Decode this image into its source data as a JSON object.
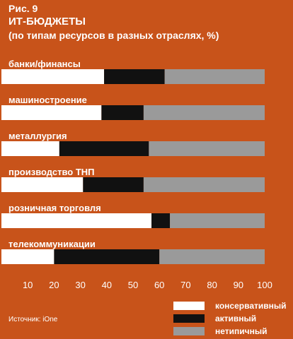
{
  "figure": {
    "label": "Рис. 9",
    "title": "ИТ-БЮДЖЕТЫ",
    "subtitle": "(по типам ресурсов в разных отраслях, %)",
    "source": "Источник: iOne"
  },
  "colors": {
    "background": "#c8531a",
    "conservative": "#ffffff",
    "active": "#111111",
    "atypical": "#9a9a9a"
  },
  "chart_data": {
    "type": "bar",
    "orientation": "horizontal",
    "stacked": true,
    "categories": [
      "банки/финансы",
      "машиностроение",
      "металлургия",
      "производство ТНП",
      "розничная торговля",
      "телекоммуникации"
    ],
    "series": [
      {
        "name": "консервативный",
        "color": "#ffffff",
        "values": [
          39,
          38,
          22,
          31,
          57,
          20
        ]
      },
      {
        "name": "активный",
        "color": "#111111",
        "values": [
          23,
          16,
          34,
          23,
          7,
          40
        ]
      },
      {
        "name": "нетипичный",
        "color": "#9a9a9a",
        "values": [
          38,
          46,
          44,
          46,
          36,
          40
        ]
      }
    ],
    "xlim": [
      0,
      100
    ],
    "xticks": [
      10,
      20,
      30,
      40,
      50,
      60,
      70,
      80,
      90,
      100
    ],
    "legend_position": "bottom-right"
  }
}
